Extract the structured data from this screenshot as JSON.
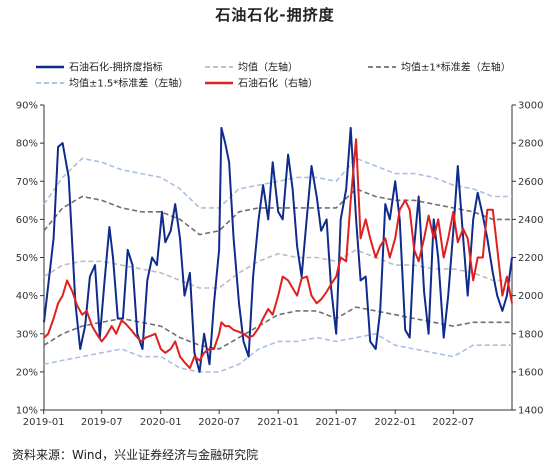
{
  "chart_data": {
    "type": "line",
    "title": "石油石化-拥挤度",
    "source": "资料来源：Wind，兴业证券经济与金融研究院",
    "left_axis": {
      "min": 10,
      "max": 90,
      "ticks": [
        "10%",
        "20%",
        "30%",
        "40%",
        "50%",
        "60%",
        "70%",
        "80%",
        "90%"
      ]
    },
    "right_axis": {
      "min": 1400,
      "max": 3000,
      "ticks": [
        "1400",
        "1600",
        "1800",
        "2000",
        "2200",
        "2400",
        "2600",
        "2800",
        "3000"
      ]
    },
    "x_ticks": [
      "2019-01",
      "2019-07",
      "2020-01",
      "2020-07",
      "2021-01",
      "2021-07",
      "2022-01",
      "2022-07"
    ],
    "x_range": [
      "2019-01-02",
      "2022-12-31"
    ],
    "grid": false,
    "legend_position": "top",
    "series": [
      {
        "name": "石油石化-拥挤度指标",
        "axis": "left",
        "color": "#0f2b8c",
        "style": "solid",
        "x": [
          "2019-01-02",
          "2019-02-01",
          "2019-02-15",
          "2019-03-01",
          "2019-03-20",
          "2019-04-10",
          "2019-04-25",
          "2019-05-10",
          "2019-05-25",
          "2019-06-10",
          "2019-06-25",
          "2019-07-10",
          "2019-07-25",
          "2019-08-05",
          "2019-08-20",
          "2019-09-05",
          "2019-09-20",
          "2019-10-05",
          "2019-10-20",
          "2019-11-05",
          "2019-11-20",
          "2019-12-05",
          "2019-12-20",
          "2020-01-05",
          "2020-01-15",
          "2020-02-01",
          "2020-02-15",
          "2020-03-01",
          "2020-03-15",
          "2020-04-01",
          "2020-04-15",
          "2020-05-01",
          "2020-05-15",
          "2020-06-01",
          "2020-06-15",
          "2020-07-01",
          "2020-07-08",
          "2020-07-20",
          "2020-08-01",
          "2020-08-15",
          "2020-09-01",
          "2020-09-15",
          "2020-10-01",
          "2020-10-15",
          "2020-11-01",
          "2020-11-15",
          "2020-12-01",
          "2020-12-15",
          "2021-01-01",
          "2021-01-15",
          "2021-02-01",
          "2021-02-15",
          "2021-03-01",
          "2021-03-15",
          "2021-04-01",
          "2021-04-15",
          "2021-05-01",
          "2021-05-15",
          "2021-06-01",
          "2021-06-15",
          "2021-07-01",
          "2021-07-15",
          "2021-08-01",
          "2021-08-15",
          "2021-09-01",
          "2021-09-15",
          "2021-10-01",
          "2021-10-15",
          "2021-11-01",
          "2021-11-15",
          "2021-12-01",
          "2021-12-15",
          "2022-01-01",
          "2022-01-15",
          "2022-02-01",
          "2022-02-15",
          "2022-03-01",
          "2022-03-15",
          "2022-04-01",
          "2022-04-15",
          "2022-05-01",
          "2022-05-15",
          "2022-06-01",
          "2022-06-15",
          "2022-07-01",
          "2022-07-15",
          "2022-08-01",
          "2022-08-15",
          "2022-09-01",
          "2022-09-15",
          "2022-10-01",
          "2022-10-15",
          "2022-11-01",
          "2022-11-15",
          "2022-12-01",
          "2022-12-15",
          "2022-12-31"
        ],
        "y": [
          33,
          55,
          79,
          80,
          71,
          38,
          26,
          32,
          45,
          48,
          29,
          44,
          58,
          50,
          34,
          34,
          52,
          48,
          30,
          26,
          44,
          50,
          48,
          62,
          54,
          57,
          64,
          55,
          40,
          46,
          25,
          20,
          30,
          22,
          38,
          52,
          84,
          80,
          75,
          55,
          38,
          28,
          24,
          45,
          60,
          69,
          60,
          75,
          62,
          60,
          77,
          68,
          53,
          45,
          61,
          74,
          66,
          57,
          60,
          42,
          30,
          60,
          68,
          84,
          60,
          44,
          45,
          28,
          26,
          36,
          64,
          60,
          70,
          60,
          31,
          29,
          53,
          66,
          41,
          30,
          60,
          50,
          29,
          40,
          57,
          74,
          55,
          40,
          60,
          67,
          61,
          55,
          46,
          40,
          36,
          40,
          50
        ]
      },
      {
        "name": "均值（左轴）",
        "axis": "left",
        "color": "#bdbdbd",
        "style": "dashed",
        "x": [
          "2019-01-02",
          "2019-03-01",
          "2019-05-01",
          "2019-07-01",
          "2019-09-01",
          "2019-11-01",
          "2020-01-01",
          "2020-03-01",
          "2020-05-01",
          "2020-07-01",
          "2020-09-01",
          "2020-11-01",
          "2021-01-01",
          "2021-03-01",
          "2021-05-01",
          "2021-07-01",
          "2021-09-01",
          "2021-11-01",
          "2022-01-01",
          "2022-03-01",
          "2022-05-01",
          "2022-07-01",
          "2022-09-01",
          "2022-11-01",
          "2022-12-31"
        ],
        "y": [
          45,
          48,
          49,
          49,
          48,
          47,
          46,
          44,
          42,
          42,
          46,
          49,
          51,
          50,
          50,
          49,
          52,
          50,
          48,
          48,
          47,
          47,
          46,
          44,
          44
        ]
      },
      {
        "name": "均值±1*标准差（左轴）",
        "axis": "left",
        "color": "#707070",
        "style": "dashed",
        "x": [
          "2019-01-02",
          "2019-03-01",
          "2019-05-01",
          "2019-07-01",
          "2019-09-01",
          "2019-11-01",
          "2020-01-01",
          "2020-03-01",
          "2020-05-01",
          "2020-07-01",
          "2020-09-01",
          "2020-11-01",
          "2021-01-01",
          "2021-03-01",
          "2021-05-01",
          "2021-07-01",
          "2021-09-01",
          "2021-11-01",
          "2022-01-01",
          "2022-03-01",
          "2022-05-01",
          "2022-07-01",
          "2022-09-01",
          "2022-11-01",
          "2022-12-31"
        ],
        "y_upper": [
          57,
          63,
          66,
          65,
          63,
          62,
          62,
          60,
          56,
          57,
          62,
          63,
          63,
          63,
          63,
          63,
          68,
          66,
          65,
          65,
          64,
          63,
          62,
          60,
          60
        ],
        "y_lower": [
          27,
          30,
          32,
          33,
          34,
          33,
          32,
          29,
          27,
          26,
          29,
          32,
          35,
          36,
          36,
          34,
          37,
          36,
          35,
          34,
          33,
          32,
          33,
          33,
          33
        ]
      },
      {
        "name": "均值±1.5*标准差（左轴）",
        "axis": "left",
        "color": "#aac0e2",
        "style": "dashed",
        "x": [
          "2019-01-02",
          "2019-03-01",
          "2019-05-01",
          "2019-07-01",
          "2019-09-01",
          "2019-11-01",
          "2020-01-01",
          "2020-03-01",
          "2020-05-01",
          "2020-07-01",
          "2020-09-01",
          "2020-11-01",
          "2021-01-01",
          "2021-03-01",
          "2021-05-01",
          "2021-07-01",
          "2021-09-01",
          "2021-11-01",
          "2022-01-01",
          "2022-03-01",
          "2022-05-01",
          "2022-07-01",
          "2022-09-01",
          "2022-11-01",
          "2022-12-31"
        ],
        "y_upper": [
          64,
          71,
          76,
          75,
          73,
          72,
          71,
          68,
          63,
          63,
          68,
          69,
          70,
          71,
          71,
          70,
          76,
          74,
          72,
          72,
          71,
          69,
          68,
          66,
          66
        ],
        "y_lower": [
          22,
          23,
          24,
          25,
          26,
          24,
          24,
          21,
          20,
          20,
          22,
          26,
          28,
          28,
          29,
          28,
          29,
          30,
          27,
          26,
          25,
          24,
          27,
          27,
          27
        ]
      },
      {
        "name": "石油石化（右轴）",
        "axis": "right",
        "color": "#e02020",
        "style": "solid",
        "x": [
          "2019-01-02",
          "2019-01-15",
          "2019-02-01",
          "2019-02-15",
          "2019-03-01",
          "2019-03-15",
          "2019-04-01",
          "2019-04-15",
          "2019-05-01",
          "2019-05-15",
          "2019-06-01",
          "2019-06-15",
          "2019-07-01",
          "2019-07-15",
          "2019-08-01",
          "2019-08-15",
          "2019-09-01",
          "2019-09-15",
          "2019-10-01",
          "2019-10-15",
          "2019-11-01",
          "2019-11-15",
          "2019-12-01",
          "2019-12-15",
          "2020-01-01",
          "2020-01-15",
          "2020-02-01",
          "2020-02-15",
          "2020-03-01",
          "2020-03-15",
          "2020-04-01",
          "2020-04-15",
          "2020-05-01",
          "2020-05-15",
          "2020-06-01",
          "2020-06-15",
          "2020-07-01",
          "2020-07-08",
          "2020-07-20",
          "2020-08-01",
          "2020-08-15",
          "2020-09-01",
          "2020-09-15",
          "2020-10-01",
          "2020-10-15",
          "2020-11-01",
          "2020-11-15",
          "2020-12-01",
          "2020-12-15",
          "2021-01-01",
          "2021-01-15",
          "2021-02-01",
          "2021-02-15",
          "2021-03-01",
          "2021-03-15",
          "2021-04-01",
          "2021-04-15",
          "2021-05-01",
          "2021-05-15",
          "2021-06-01",
          "2021-06-15",
          "2021-07-01",
          "2021-07-15",
          "2021-08-01",
          "2021-08-15",
          "2021-09-01",
          "2021-09-15",
          "2021-10-01",
          "2021-10-15",
          "2021-11-01",
          "2021-11-15",
          "2021-12-01",
          "2021-12-15",
          "2022-01-01",
          "2022-01-15",
          "2022-02-01",
          "2022-02-15",
          "2022-03-01",
          "2022-03-15",
          "2022-04-01",
          "2022-04-15",
          "2022-05-01",
          "2022-05-15",
          "2022-06-01",
          "2022-06-15",
          "2022-07-01",
          "2022-07-15",
          "2022-08-01",
          "2022-08-15",
          "2022-09-01",
          "2022-09-15",
          "2022-10-01",
          "2022-10-15",
          "2022-11-01",
          "2022-11-15",
          "2022-12-01",
          "2022-12-15",
          "2022-12-31"
        ],
        "y": [
          1780,
          1800,
          1880,
          1960,
          2000,
          2080,
          2020,
          1950,
          1900,
          1920,
          1840,
          1800,
          1760,
          1790,
          1840,
          1800,
          1870,
          1850,
          1820,
          1790,
          1760,
          1780,
          1790,
          1800,
          1720,
          1700,
          1720,
          1760,
          1680,
          1650,
          1620,
          1680,
          1660,
          1700,
          1720,
          1720,
          1800,
          1860,
          1840,
          1840,
          1820,
          1810,
          1800,
          1780,
          1790,
          1830,
          1880,
          1930,
          1900,
          2000,
          2100,
          2080,
          2040,
          2000,
          2090,
          2100,
          2000,
          1960,
          1980,
          2020,
          2060,
          2100,
          2200,
          2180,
          2500,
          2820,
          2300,
          2400,
          2300,
          2200,
          2260,
          2300,
          2200,
          2300,
          2450,
          2500,
          2450,
          2240,
          2180,
          2300,
          2420,
          2300,
          2400,
          2200,
          2300,
          2440,
          2280,
          2350,
          2300,
          2080,
          2200,
          2200,
          2450,
          2450,
          2250,
          2000,
          2100,
          1960
        ]
      }
    ]
  }
}
